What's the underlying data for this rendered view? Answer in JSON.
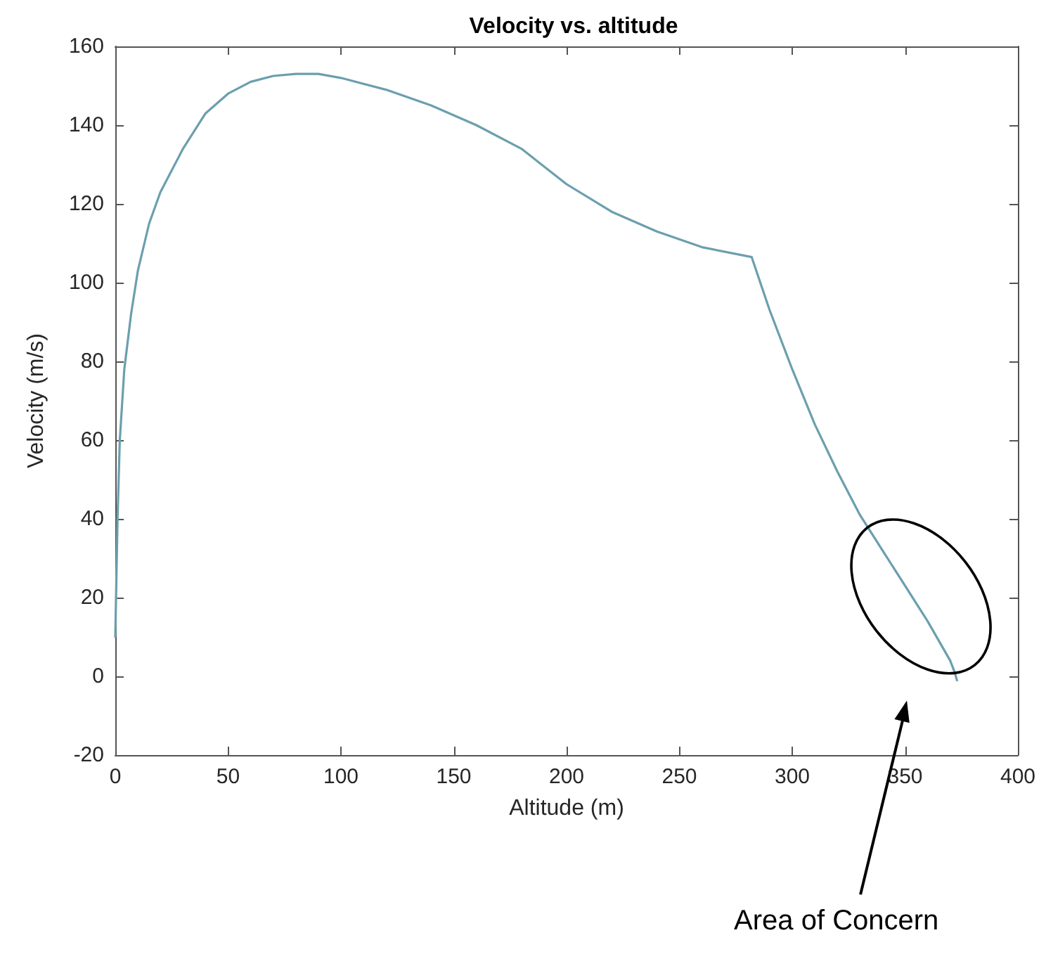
{
  "chart_data": {
    "type": "line",
    "title": "Velocity vs. altitude",
    "xlabel": "Altitude (m)",
    "ylabel": "Velocity (m/s)",
    "x": [
      0,
      1,
      2,
      4,
      7,
      10,
      15,
      20,
      30,
      40,
      50,
      60,
      70,
      80,
      90,
      100,
      120,
      140,
      160,
      180,
      200,
      220,
      240,
      260,
      282,
      290,
      300,
      310,
      320,
      330,
      340,
      350,
      360,
      365,
      370,
      372,
      373
    ],
    "series": [
      {
        "color": "#6b9fae",
        "values": [
          10,
          40,
          60,
          78,
          92,
          103,
          115,
          123,
          134,
          143,
          148,
          151,
          152.5,
          153,
          153,
          152,
          149,
          145,
          140,
          134,
          125,
          118,
          113,
          109,
          106.5,
          93,
          78,
          64,
          52,
          41,
          32,
          23,
          14,
          9,
          4,
          1,
          -1
        ]
      }
    ],
    "xlim": [
      0,
      400
    ],
    "xticks": [
      0,
      50,
      100,
      150,
      200,
      250,
      300,
      350,
      400
    ],
    "ylim": [
      -20,
      160
    ],
    "yticks": [
      -20,
      0,
      20,
      40,
      60,
      80,
      100,
      120,
      140,
      160
    ],
    "marker": "none",
    "line_style": "solid",
    "annotations": [
      "Area of Concern"
    ]
  }
}
